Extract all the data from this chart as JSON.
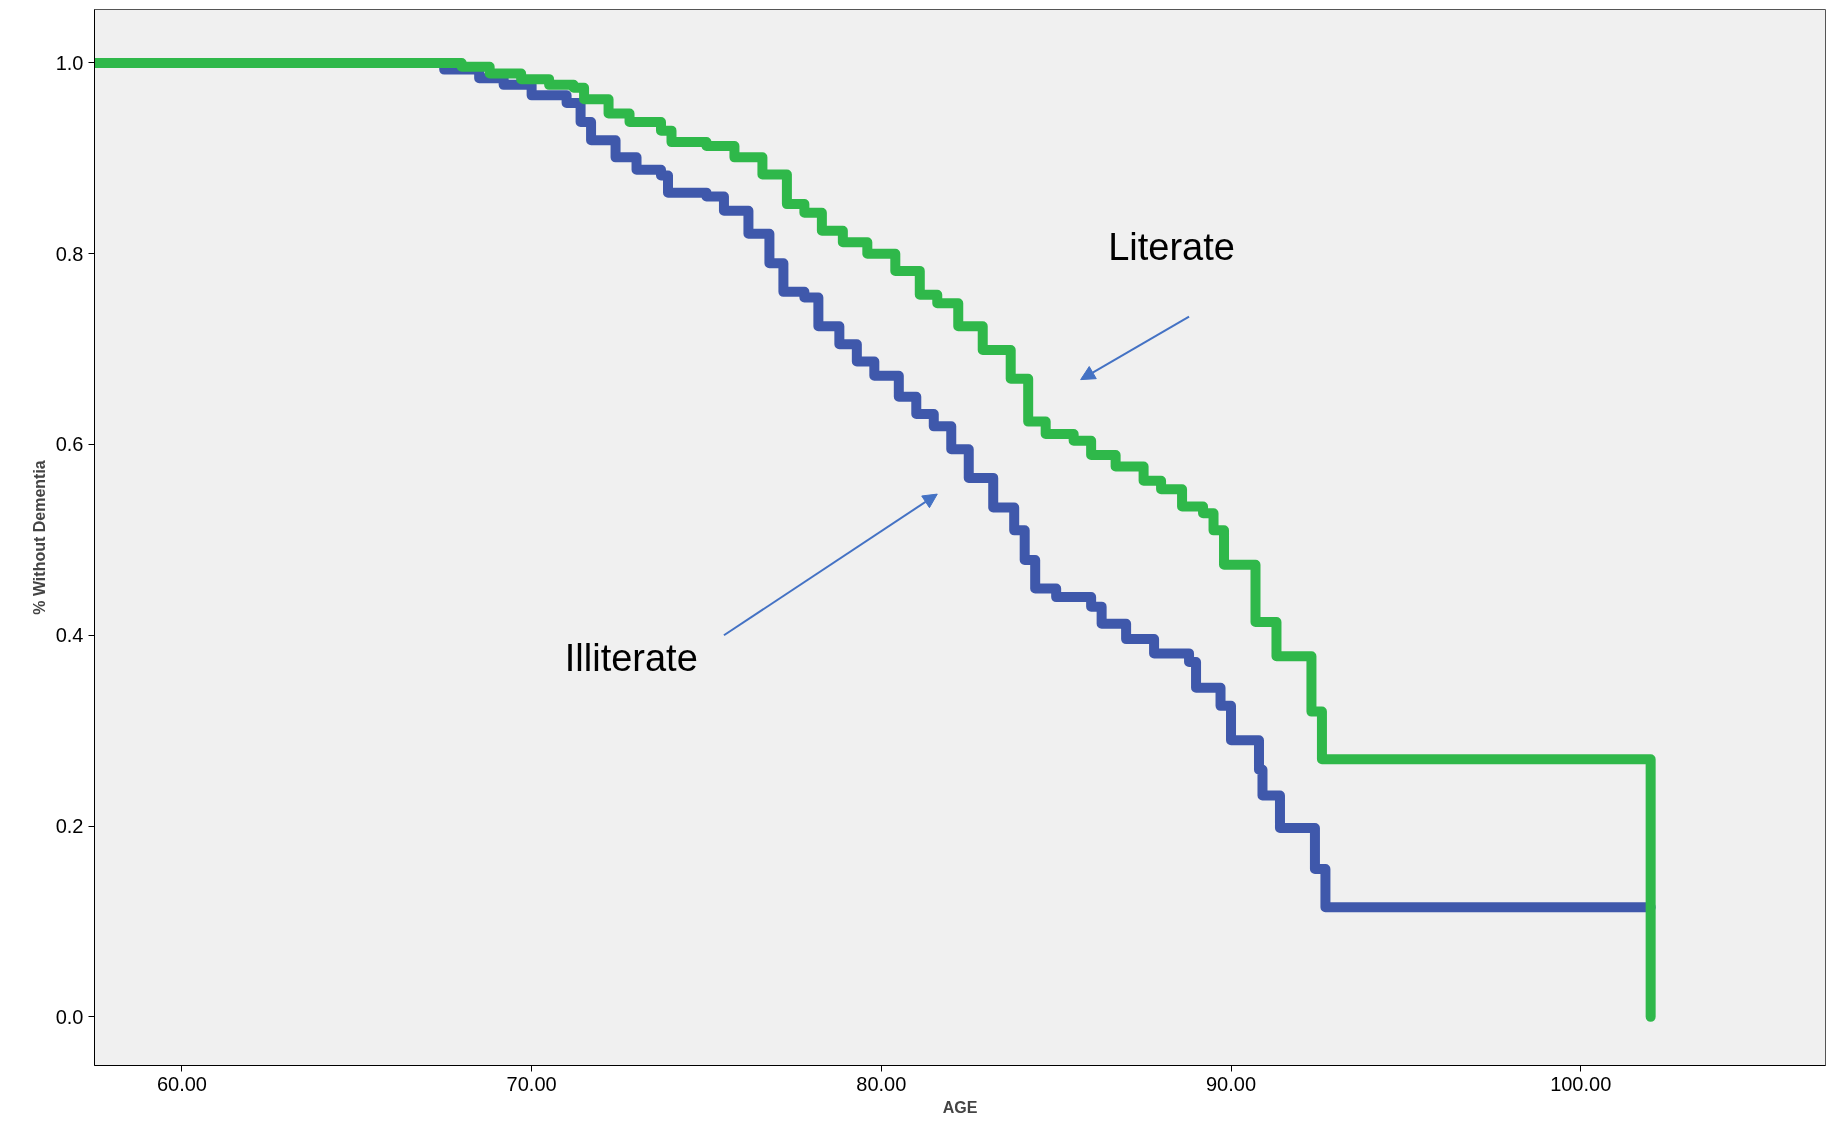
{
  "chart_data": {
    "type": "step",
    "xlabel": "AGE",
    "ylabel": "% Without Dementia",
    "xlim": [
      57.5,
      107.0
    ],
    "ylim": [
      -0.051,
      1.056
    ],
    "xticks": [
      {
        "value": 60,
        "label": "60.00"
      },
      {
        "value": 70,
        "label": "70.00"
      },
      {
        "value": 80,
        "label": "80.00"
      },
      {
        "value": 90,
        "label": "90.00"
      },
      {
        "value": 100,
        "label": "100.00"
      }
    ],
    "yticks": [
      {
        "value": 0,
        "label": "0.0"
      },
      {
        "value": 0.2,
        "label": "0.2"
      },
      {
        "value": 0.4,
        "label": "0.4"
      },
      {
        "value": 0.6,
        "label": "0.6"
      },
      {
        "value": 0.8,
        "label": "0.8"
      },
      {
        "value": 1.0,
        "label": "1.0"
      }
    ],
    "grid": false,
    "marker": "none",
    "line_style": "solid",
    "series": [
      {
        "color": "#3f58ab",
        "x": [
          57.5,
          67.5,
          68.5,
          69.2,
          70.0,
          71.0,
          71.4,
          71.7,
          72.4,
          73.0,
          73.7,
          73.9,
          75.0,
          75.5,
          76.2,
          76.8,
          77.2,
          77.8,
          78.2,
          78.8,
          79.3,
          79.8,
          80.5,
          81.0,
          81.5,
          82.0,
          82.5,
          83.2,
          83.8,
          84.1,
          84.4,
          85.0,
          86.0,
          86.3,
          87.0,
          87.8,
          88.8,
          89.0,
          89.7,
          90.0,
          90.8,
          90.9,
          91.4,
          92.4,
          92.7,
          102.0
        ],
        "values": [
          1.0,
          0.993,
          0.984,
          0.977,
          0.966,
          0.958,
          0.938,
          0.919,
          0.901,
          0.888,
          0.882,
          0.864,
          0.86,
          0.845,
          0.821,
          0.79,
          0.76,
          0.754,
          0.724,
          0.705,
          0.687,
          0.672,
          0.65,
          0.632,
          0.619,
          0.595,
          0.565,
          0.534,
          0.51,
          0.479,
          0.449,
          0.44,
          0.43,
          0.412,
          0.396,
          0.381,
          0.372,
          0.345,
          0.326,
          0.29,
          0.259,
          0.232,
          0.198,
          0.155,
          0.115,
          0.115
        ]
      },
      {
        "color": "#2fb84a",
        "x": [
          57.5,
          67.1,
          68.0,
          68.8,
          69.7,
          70.5,
          71.2,
          71.5,
          72.2,
          72.8,
          73.7,
          74.0,
          75.0,
          75.8,
          76.6,
          77.3,
          77.8,
          78.3,
          78.9,
          79.6,
          80.4,
          81.1,
          81.6,
          82.2,
          82.9,
          83.7,
          84.2,
          84.7,
          85.5,
          86.0,
          86.7,
          87.5,
          88.0,
          88.6,
          89.2,
          89.5,
          89.8,
          90.7,
          91.3,
          92.3,
          92.6,
          102.0
        ],
        "values": [
          1.0,
          1.0,
          0.996,
          0.989,
          0.983,
          0.977,
          0.974,
          0.962,
          0.947,
          0.938,
          0.929,
          0.917,
          0.913,
          0.901,
          0.883,
          0.852,
          0.843,
          0.824,
          0.812,
          0.8,
          0.782,
          0.757,
          0.748,
          0.724,
          0.699,
          0.669,
          0.624,
          0.611,
          0.604,
          0.589,
          0.577,
          0.562,
          0.553,
          0.535,
          0.528,
          0.51,
          0.474,
          0.414,
          0.378,
          0.32,
          0.27,
          0.0
        ]
      }
    ],
    "annotations": [
      "Literate",
      "Illiterate"
    ]
  }
}
